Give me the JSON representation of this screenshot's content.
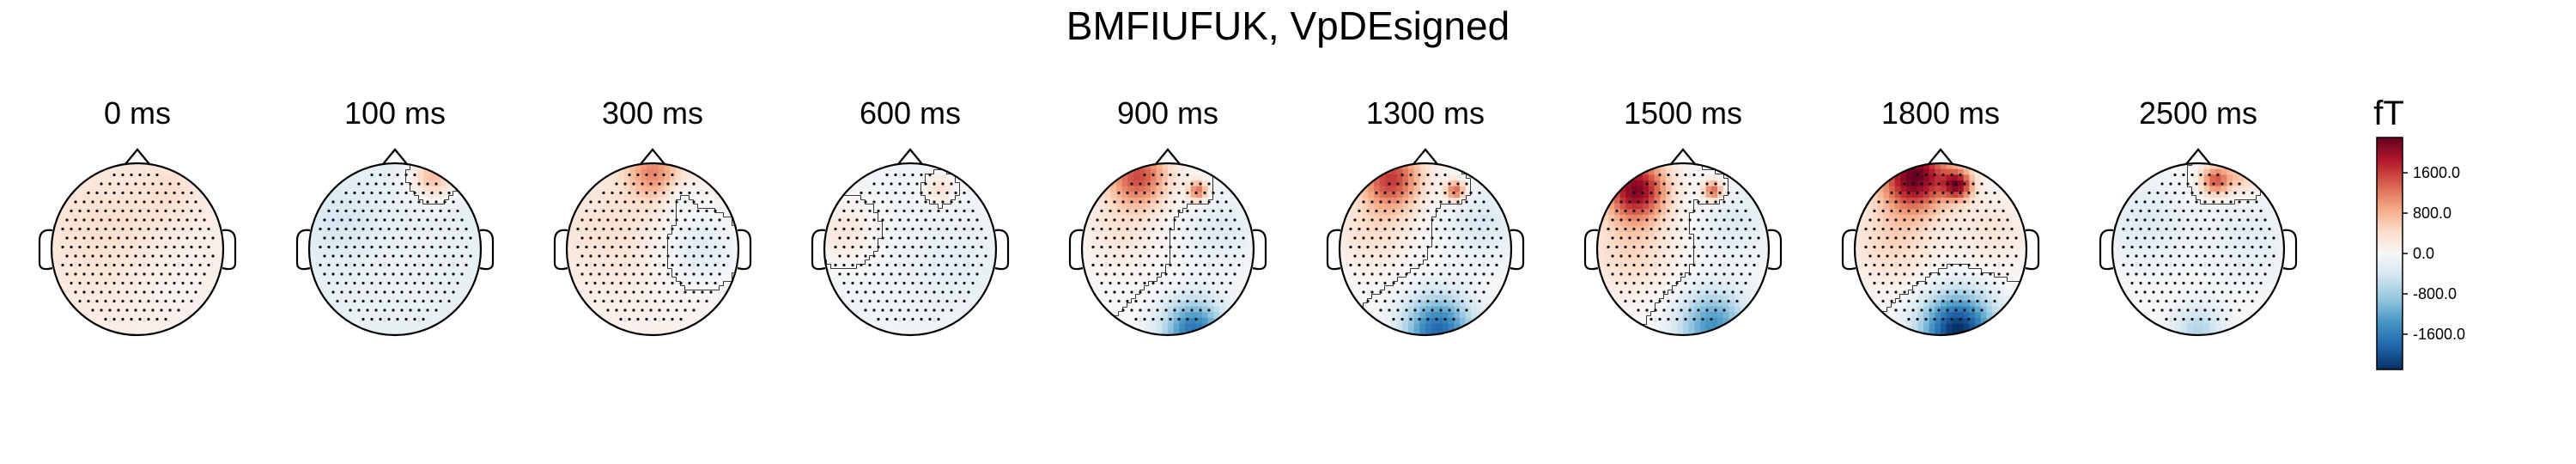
{
  "title": "BMFIUFUK, VpDEsigned",
  "colorbar": {
    "unit": "fT",
    "ticks": [
      {
        "value": 1600,
        "label": "1600.0"
      },
      {
        "value": 800,
        "label": "800.0"
      },
      {
        "value": 0,
        "label": "0.0"
      },
      {
        "value": -800,
        "label": "-800.0"
      },
      {
        "value": -1600,
        "label": "-1600.0"
      }
    ],
    "range": [
      -2300,
      2300
    ],
    "colormap": "RdBu_r",
    "colors": {
      "max": "#67001f",
      "high": "#d6604d",
      "mid": "#f7f7f7",
      "low": "#4393c3",
      "min": "#053061"
    }
  },
  "chart_data": {
    "type": "heatmap",
    "title": "BMFIUFUK, VpDEsigned",
    "unit": "fT",
    "times": [
      {
        "label": "0 ms",
        "ms": 0
      },
      {
        "label": "100 ms",
        "ms": 100
      },
      {
        "label": "300 ms",
        "ms": 300
      },
      {
        "label": "600 ms",
        "ms": 600
      },
      {
        "label": "900 ms",
        "ms": 900
      },
      {
        "label": "1300 ms",
        "ms": 1300
      },
      {
        "label": "1500 ms",
        "ms": 1500
      },
      {
        "label": "1800 ms",
        "ms": 1800
      },
      {
        "label": "2500 ms",
        "ms": 2500
      }
    ],
    "maps": [
      {
        "base": 150,
        "sources": [
          {
            "x": -0.3,
            "y": 0.2,
            "amp": 250,
            "s": 0.55
          },
          {
            "x": 0.4,
            "y": 0.7,
            "amp": 200,
            "s": 0.2
          },
          {
            "x": 0.3,
            "y": -0.3,
            "amp": -120,
            "s": 0.4
          }
        ]
      },
      {
        "base": -200,
        "sources": [
          {
            "x": 0.45,
            "y": 0.85,
            "amp": 900,
            "s": 0.18
          },
          {
            "x": -0.6,
            "y": 0.3,
            "amp": -200,
            "s": 0.3
          },
          {
            "x": 0.0,
            "y": -0.2,
            "amp": 60,
            "s": 0.5
          }
        ]
      },
      {
        "base": 100,
        "sources": [
          {
            "x": 0.0,
            "y": 0.9,
            "amp": 1000,
            "s": 0.22
          },
          {
            "x": -0.5,
            "y": 0.2,
            "amp": 250,
            "s": 0.45
          },
          {
            "x": 0.55,
            "y": 0.0,
            "amp": -400,
            "s": 0.3
          },
          {
            "x": 0.3,
            "y": 0.6,
            "amp": -250,
            "s": 0.12
          }
        ]
      },
      {
        "base": -80,
        "sources": [
          {
            "x": -0.75,
            "y": 0.2,
            "amp": 350,
            "s": 0.25
          },
          {
            "x": 0.35,
            "y": 0.7,
            "amp": 450,
            "s": 0.12
          },
          {
            "x": 0.5,
            "y": -0.2,
            "amp": -150,
            "s": 0.4
          }
        ]
      },
      {
        "base": 0,
        "sources": [
          {
            "x": -0.35,
            "y": 0.85,
            "amp": 1500,
            "s": 0.25
          },
          {
            "x": 0.35,
            "y": 0.68,
            "amp": 1300,
            "s": 0.08
          },
          {
            "x": 0.3,
            "y": -0.95,
            "amp": -1700,
            "s": 0.25
          },
          {
            "x": -0.55,
            "y": 0.2,
            "amp": 300,
            "s": 0.3
          },
          {
            "x": 0.6,
            "y": 0.2,
            "amp": -300,
            "s": 0.3
          }
        ]
      },
      {
        "base": 0,
        "sources": [
          {
            "x": -0.4,
            "y": 0.82,
            "amp": 1600,
            "s": 0.25
          },
          {
            "x": 0.35,
            "y": 0.68,
            "amp": 1400,
            "s": 0.08
          },
          {
            "x": 0.15,
            "y": -0.95,
            "amp": -1800,
            "s": 0.28
          },
          {
            "x": -0.6,
            "y": 0.2,
            "amp": 400,
            "s": 0.3
          },
          {
            "x": 0.65,
            "y": 0.3,
            "amp": -350,
            "s": 0.3
          }
        ]
      },
      {
        "base": 0,
        "sources": [
          {
            "x": -0.55,
            "y": 0.7,
            "amp": 2100,
            "s": 0.25
          },
          {
            "x": 0.35,
            "y": 0.68,
            "amp": 1400,
            "s": 0.08
          },
          {
            "x": 0.35,
            "y": -0.9,
            "amp": -1400,
            "s": 0.28
          },
          {
            "x": -0.6,
            "y": 0.0,
            "amp": 500,
            "s": 0.35
          },
          {
            "x": 0.6,
            "y": 0.3,
            "amp": -300,
            "s": 0.3
          }
        ]
      },
      {
        "base": 0,
        "sources": [
          {
            "x": -0.3,
            "y": 0.85,
            "amp": 2300,
            "s": 0.28
          },
          {
            "x": 0.2,
            "y": 0.75,
            "amp": 1800,
            "s": 0.12
          },
          {
            "x": 0.2,
            "y": -0.95,
            "amp": -2300,
            "s": 0.3
          },
          {
            "x": -0.55,
            "y": 0.1,
            "amp": 500,
            "s": 0.35
          },
          {
            "x": 0.6,
            "y": 0.2,
            "amp": 300,
            "s": 0.3
          }
        ]
      },
      {
        "base": 0,
        "sources": [
          {
            "x": 0.2,
            "y": 0.8,
            "amp": 1400,
            "s": 0.12
          },
          {
            "x": 0.5,
            "y": 0.85,
            "amp": 600,
            "s": 0.15
          },
          {
            "x": -0.6,
            "y": 0.3,
            "amp": -300,
            "s": 0.35
          },
          {
            "x": 0.6,
            "y": 0.1,
            "amp": -250,
            "s": 0.35
          },
          {
            "x": 0.0,
            "y": -0.95,
            "amp": -700,
            "s": 0.2
          }
        ]
      }
    ]
  }
}
